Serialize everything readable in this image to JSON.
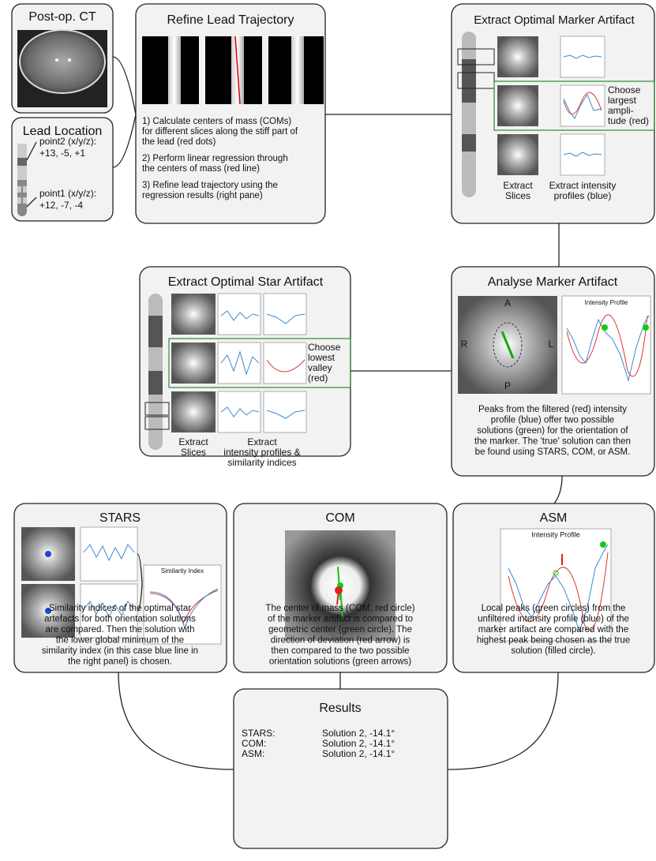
{
  "ct": {
    "title": "Post-op. CT"
  },
  "lead_location": {
    "title": "Lead Location",
    "point2_label": "point2 (x/y/z):",
    "point2_value": "+13, -5, +1",
    "point1_label": "point1 (x/y/z):",
    "point1_value": "+12, -7, -4"
  },
  "refine": {
    "title": "Refine Lead Trajectory",
    "steps": [
      [
        "1) Calculate centers of mass (COMs)",
        "for different slices along the stiff part of",
        "the lead (red dots)"
      ],
      [
        "2) Perform linear regression through",
        "the centers of mass (red line)"
      ],
      [
        "3) Refine lead trajectory using the",
        "regression results (right pane)"
      ]
    ]
  },
  "marker": {
    "title": "Extract Optimal Marker Artifact",
    "choose": [
      "Choose",
      "largest",
      "ampli-",
      "tude (red)"
    ],
    "slices": [
      "Extract",
      "Slices"
    ],
    "profiles": [
      "Extract intensity",
      "profiles (blue)"
    ]
  },
  "star": {
    "title": "Extract Optimal Star Artifact",
    "choose": [
      "Choose",
      "lowest",
      "valley",
      "(red)"
    ],
    "slices": [
      "Extract",
      "Slices"
    ],
    "profiles": [
      "Extract",
      "intensity profiles &",
      "similarity indices"
    ]
  },
  "analyse": {
    "title": "Analyse Marker Artifact",
    "label_a": "A",
    "label_r": "R",
    "label_l": "L",
    "label_p": "P",
    "plot_title": "Intensity Profile",
    "text": [
      "Peaks from the filtered (red) intensity",
      "profile (blue) offer two possible",
      "solutions (green) for the orientation of",
      "the marker. The 'true' solution can then",
      "be found using STARS, COM, or ASM."
    ]
  },
  "stars": {
    "title": "STARS",
    "plot_title": "Similarity Index",
    "text": [
      "Similarity indices of the optimal star",
      "artefacts for both orientation solutions",
      "are compared. Then the solution with",
      "the lower global minimum of the",
      "similarity index (in this case blue line in",
      "the right panel) is chosen."
    ]
  },
  "com": {
    "title": "COM",
    "text": [
      "The center of mass (COM, red circle)",
      "of the marker artifact is compared to",
      "geometric center (green circle). The",
      "direction of deviation (red arrow) is",
      "then compared to the two possible",
      "orientation solutions (green arrows)"
    ]
  },
  "asm": {
    "title": "ASM",
    "plot_title": "Intensity Profile",
    "text": [
      "Local peaks (green circles) from the",
      "unfiltered intensity profile (blue) of the",
      "marker artifact are compared with the",
      "highest peak being chosen as the true",
      "solution (filled circle)."
    ]
  },
  "results": {
    "title": "Results",
    "rows": [
      [
        "STARS:",
        "Solution 2, -14.1°"
      ],
      [
        "COM:",
        "Solution 2, -14.1°"
      ],
      [
        "ASM:",
        "Solution 2, -14.1°"
      ]
    ]
  }
}
